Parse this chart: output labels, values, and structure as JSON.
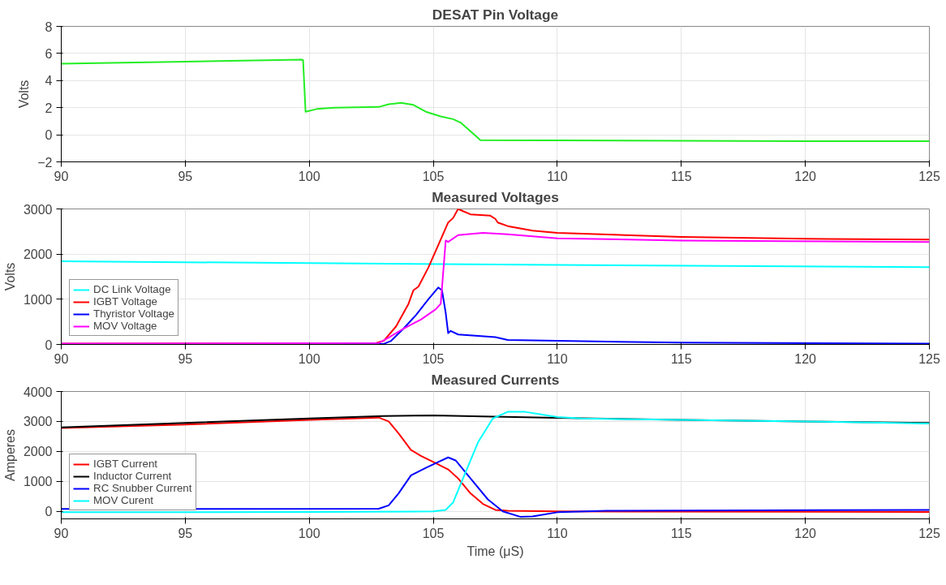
{
  "chart_data": [
    {
      "type": "line",
      "title": "DESAT Pin Voltage",
      "ylabel": "Volts",
      "xlim": [
        90,
        125
      ],
      "xticks": [
        90,
        95,
        100,
        105,
        110,
        115,
        120,
        125
      ],
      "ylim": [
        -2,
        8
      ],
      "yticks": [
        -2,
        0,
        2,
        4,
        6,
        8
      ],
      "grid": true,
      "legend": false,
      "series": [
        {
          "color": "#22ee22",
          "x": [
            90,
            95,
            99.7,
            99.75,
            99.85,
            100.3,
            101,
            102.8,
            103.2,
            103.7,
            104.2,
            104.7,
            105.3,
            105.8,
            106.1,
            106.6,
            106.9,
            110,
            115,
            120,
            125
          ],
          "values": [
            5.25,
            5.4,
            5.55,
            5.5,
            1.7,
            1.9,
            2.0,
            2.05,
            2.25,
            2.35,
            2.2,
            1.7,
            1.35,
            1.15,
            0.9,
            0.1,
            -0.4,
            -0.42,
            -0.45,
            -0.48,
            -0.48
          ]
        }
      ]
    },
    {
      "type": "line",
      "title": "Measured Voltages",
      "ylabel": "Volts",
      "xlim": [
        90,
        125
      ],
      "xticks": [
        90,
        95,
        100,
        105,
        110,
        115,
        120,
        125
      ],
      "ylim": [
        0,
        3000
      ],
      "yticks": [
        0,
        1000,
        2000,
        3000
      ],
      "grid": true,
      "legend": "bottom left",
      "series": [
        {
          "name": "DC Link Voltage",
          "color": "#00ffff",
          "x": [
            90,
            100,
            110,
            125
          ],
          "values": [
            1840,
            1800,
            1760,
            1710
          ]
        },
        {
          "name": "IGBT Voltage",
          "color": "#ff0000",
          "x": [
            90,
            102.7,
            103.0,
            103.5,
            104.0,
            104.2,
            104.4,
            104.8,
            105.2,
            105.6,
            105.8,
            106.0,
            106.2,
            106.5,
            107.3,
            107.5,
            107.6,
            108,
            109,
            110,
            115,
            120,
            125
          ],
          "values": [
            20,
            30,
            80,
            400,
            900,
            1200,
            1280,
            1700,
            2200,
            2700,
            2800,
            3000,
            2950,
            2880,
            2850,
            2780,
            2700,
            2620,
            2520,
            2470,
            2380,
            2340,
            2320
          ]
        },
        {
          "name": "Thyristor Voltage",
          "color": "#0000ff",
          "x": [
            90,
            103.0,
            103.3,
            103.8,
            104.3,
            104.8,
            105.2,
            105.35,
            105.5,
            105.6,
            105.7,
            106,
            107.5,
            108,
            110,
            115,
            125
          ],
          "values": [
            10,
            10,
            80,
            350,
            650,
            1000,
            1260,
            1200,
            700,
            250,
            300,
            220,
            160,
            100,
            80,
            40,
            20
          ]
        },
        {
          "name": "MOV Voltage",
          "color": "#ff00ff",
          "x": [
            90,
            102.8,
            103.2,
            103.8,
            104.5,
            105.1,
            105.3,
            105.5,
            105.6,
            106,
            107,
            108,
            110,
            115,
            125
          ],
          "values": [
            20,
            30,
            150,
            350,
            550,
            780,
            900,
            2300,
            2270,
            2420,
            2470,
            2440,
            2350,
            2300,
            2270
          ]
        }
      ]
    },
    {
      "type": "line",
      "title": "Measured Currents",
      "xlabel": "Time (μS)",
      "ylabel": "Amperes",
      "xlim": [
        90,
        125
      ],
      "xticks": [
        90,
        95,
        100,
        105,
        110,
        115,
        120,
        125
      ],
      "ylim": [
        -250,
        4000
      ],
      "yticks": [
        0,
        1000,
        2000,
        3000,
        4000
      ],
      "grid": true,
      "legend": "bottom left",
      "series": [
        {
          "name": "IGBT Current",
          "color": "#ff0000",
          "x": [
            90,
            95,
            100,
            102.8,
            103.2,
            103.6,
            104.1,
            104.5,
            105,
            105.6,
            106,
            106.5,
            107,
            107.5,
            108,
            110,
            125
          ],
          "values": [
            2780,
            2900,
            3050,
            3130,
            3000,
            2600,
            2050,
            1850,
            1650,
            1400,
            1100,
            600,
            250,
            50,
            20,
            0,
            -20
          ]
        },
        {
          "name": "Inductor Current",
          "color": "#000000",
          "x": [
            90,
            95,
            100,
            103,
            105,
            107,
            110,
            115,
            120,
            125
          ],
          "values": [
            2800,
            2950,
            3100,
            3180,
            3200,
            3170,
            3120,
            3050,
            3000,
            2950
          ]
        },
        {
          "name": "RC Snubber Current",
          "color": "#0000ff",
          "x": [
            90,
            102.8,
            103.2,
            103.6,
            104.1,
            104.7,
            105.2,
            105.6,
            105.9,
            106.5,
            107.2,
            107.8,
            108.5,
            109,
            110,
            112,
            125
          ],
          "values": [
            80,
            90,
            200,
            600,
            1200,
            1450,
            1650,
            1800,
            1700,
            1100,
            400,
            0,
            -180,
            -170,
            -30,
            20,
            50
          ]
        },
        {
          "name": "MOV Curent",
          "color": "#00ffff",
          "x": [
            90,
            100,
            105,
            105.5,
            105.8,
            106.3,
            106.8,
            107.4,
            108,
            108.7,
            110,
            111,
            115,
            120,
            125
          ],
          "values": [
            -30,
            -20,
            0,
            50,
            300,
            1300,
            2300,
            3100,
            3320,
            3320,
            3150,
            3100,
            3050,
            3000,
            2930
          ]
        }
      ]
    }
  ]
}
